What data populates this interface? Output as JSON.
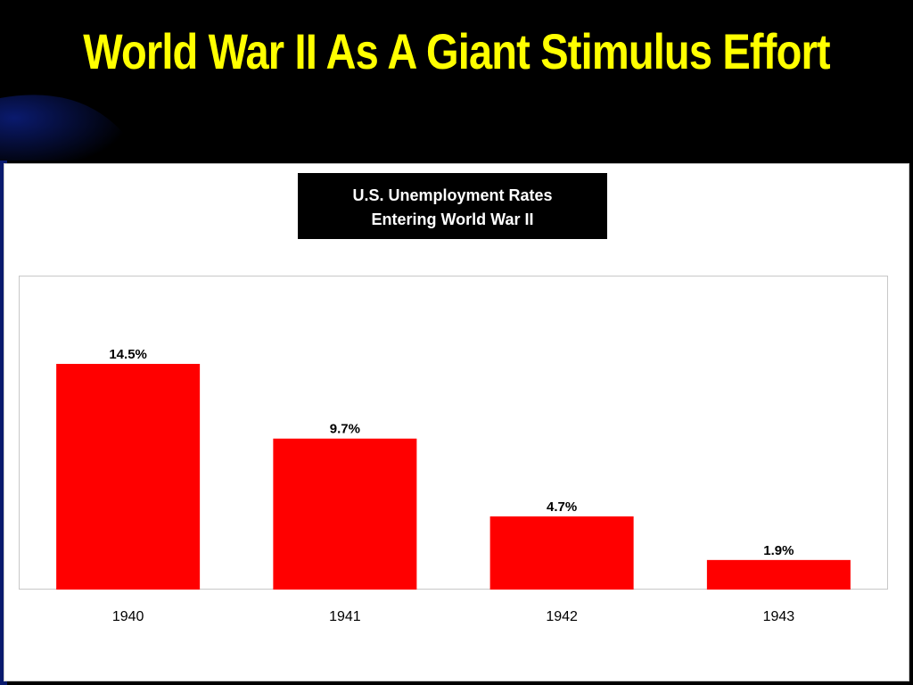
{
  "slide": {
    "title": "World War II As A Giant Stimulus Effort"
  },
  "colors": {
    "background": "#000000",
    "title": "#ffff00",
    "bar": "#ff0000",
    "swoosh": "#0a1a6e"
  },
  "chart_data": {
    "type": "bar",
    "title": "U.S. Unemployment Rates",
    "subtitle": "Entering World War II",
    "categories": [
      "1940",
      "1941",
      "1942",
      "1943"
    ],
    "values": [
      14.5,
      9.7,
      4.7,
      1.9
    ],
    "data_labels": [
      "14.5%",
      "9.7%",
      "4.7%",
      "1.9%"
    ],
    "xlabel": "",
    "ylabel": "",
    "ylim": [
      0,
      20
    ],
    "grid": false,
    "legend": "none"
  }
}
